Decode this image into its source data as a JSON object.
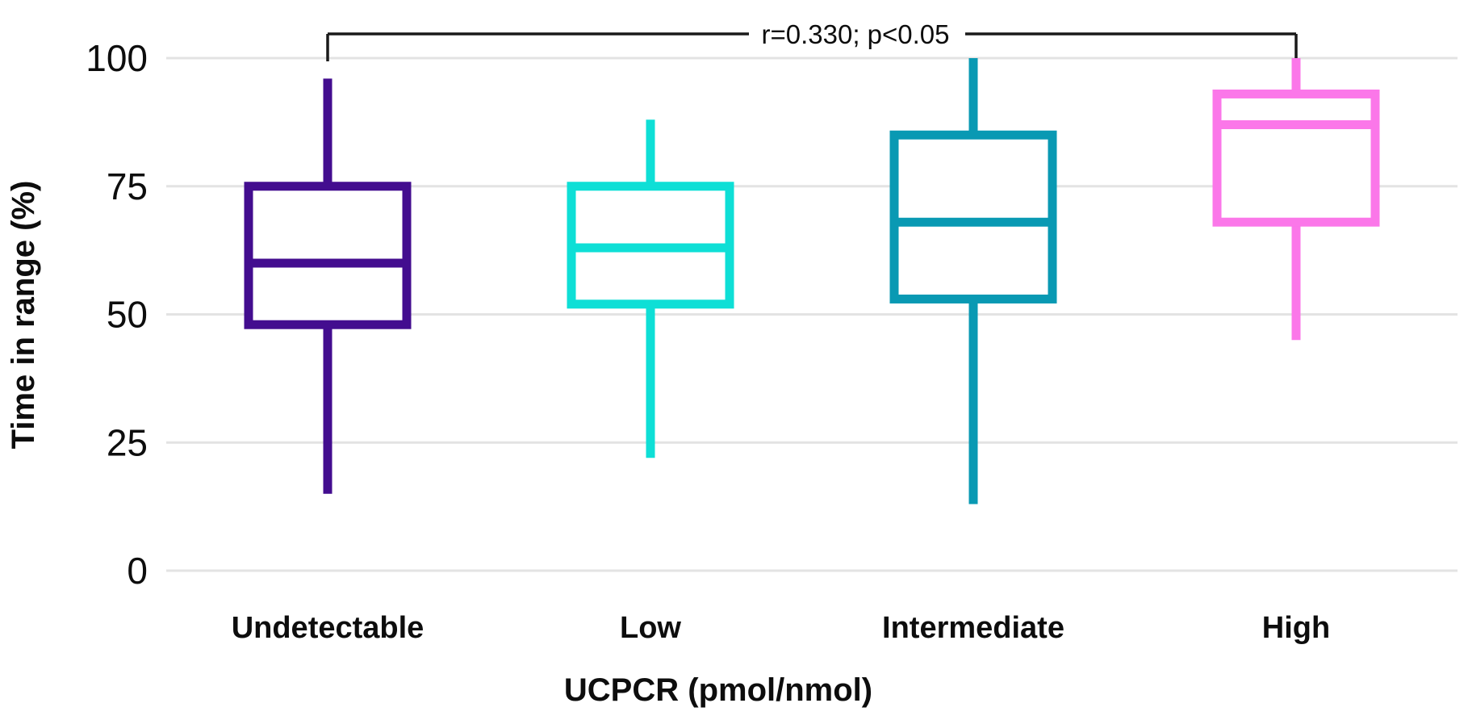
{
  "chart_data": {
    "type": "box",
    "title": "",
    "xlabel": "UCPCR (pmol/nmol)",
    "ylabel": "Time in range (%)",
    "ylim": [
      0,
      100
    ],
    "yticks": [
      0,
      25,
      50,
      75,
      100
    ],
    "grid": "horizontal",
    "legend": "none",
    "categories": [
      "Undetectable",
      "Low",
      "Intermediate",
      "High"
    ],
    "series": [
      {
        "name": "Undetectable",
        "color": "#430D8F",
        "whisker_low": 15,
        "q1": 48,
        "median": 60,
        "q3": 75,
        "whisker_high": 96
      },
      {
        "name": "Low",
        "color": "#0EDFD6",
        "whisker_low": 22,
        "q1": 52,
        "median": 63,
        "q3": 75,
        "whisker_high": 88
      },
      {
        "name": "Intermediate",
        "color": "#0999B3",
        "whisker_low": 13,
        "q1": 53,
        "median": 68,
        "q3": 85,
        "whisker_high": 100
      },
      {
        "name": "High",
        "color": "#FB77E9",
        "whisker_low": 45,
        "q1": 68,
        "median": 87,
        "q3": 93,
        "whisker_high": 100
      }
    ],
    "annotation": {
      "text": "r=0.330; p<0.05",
      "from": "Undetectable",
      "to": "High"
    },
    "style": {
      "gridline_color": "#E3E3E3",
      "bracket_color": "#1a1a1a",
      "box_fill": "#ffffff",
      "box_stroke_width": 11
    }
  }
}
